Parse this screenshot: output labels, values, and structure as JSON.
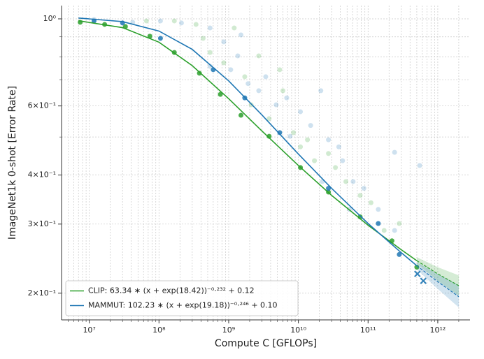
{
  "chart_data": {
    "type": "line",
    "xlabel": "Compute C [GFLOPs]",
    "ylabel": "ImageNet1k 0-shot [Error Rate]",
    "xscale": "log",
    "yscale": "log",
    "grid": true,
    "legend": "lower left",
    "xlim": [
      4000000,
      2900000000000
    ],
    "ylim": [
      0.171,
      1.081
    ],
    "xticks": [
      {
        "value": 10000000,
        "label": "10⁷"
      },
      {
        "value": 100000000,
        "label": "10⁸"
      },
      {
        "value": 1000000000,
        "label": "10⁹"
      },
      {
        "value": 10000000000,
        "label": "10¹⁰"
      },
      {
        "value": 100000000000,
        "label": "10¹¹"
      },
      {
        "value": 1000000000000,
        "label": "10¹²"
      }
    ],
    "xminorticks": [
      5000000.0,
      6000000.0,
      7000000.0,
      8000000.0,
      9000000.0,
      20000000.0,
      30000000.0,
      40000000.0,
      50000000.0,
      60000000.0,
      70000000.0,
      80000000.0,
      90000000.0,
      200000000.0,
      300000000.0,
      400000000.0,
      500000000.0,
      600000000.0,
      700000000.0,
      800000000.0,
      900000000.0,
      2000000000.0,
      3000000000.0,
      4000000000.0,
      5000000000.0,
      6000000000.0,
      7000000000.0,
      8000000000.0,
      9000000000.0,
      20000000000.0,
      30000000000.0,
      40000000000.0,
      50000000000.0,
      60000000000.0,
      70000000000.0,
      80000000000.0,
      90000000000.0,
      200000000000.0,
      300000000000.0,
      400000000000.0,
      500000000000.0,
      600000000000.0,
      700000000000.0,
      800000000000.0,
      900000000000.0,
      2000000000000.0
    ],
    "yticks": [
      {
        "value": 1,
        "label": "10⁰"
      },
      {
        "value": 0.6,
        "label": "6×10⁻¹"
      },
      {
        "value": 0.4,
        "label": "4×10⁻¹"
      },
      {
        "value": 0.3,
        "label": "3×10⁻¹"
      },
      {
        "value": 0.2,
        "label": "2×10⁻¹"
      }
    ],
    "yminorticks": [
      0.5,
      0.7,
      0.8,
      0.9
    ],
    "series": [
      {
        "name": "CLIP: 63.34 ∗ (x + exp(18.42))⁻⁰·²³² + 0.12",
        "color": "#2ca02c",
        "x": [
          7000000.0,
          30000000.0,
          100000000.0,
          300000000.0,
          1000000000.0,
          3000000000.0,
          10000000000.0,
          30000000000.0,
          100000000000.0,
          300000000000.0,
          500000000000.0
        ],
        "values": [
          0.989,
          0.95,
          0.872,
          0.76,
          0.626,
          0.518,
          0.423,
          0.355,
          0.298,
          0.258,
          0.242
        ]
      },
      {
        "name": "MAMMUT: 102.23 ∗ (x + exp(19.18))⁻⁰·²⁴⁶ + 0.10",
        "color": "#1f77b4",
        "x": [
          7000000.0,
          30000000.0,
          100000000.0,
          300000000.0,
          1000000000.0,
          3000000000.0,
          10000000000.0,
          30000000000.0,
          100000000000.0,
          300000000000.0,
          500000000000.0
        ],
        "values": [
          1.005,
          0.984,
          0.931,
          0.836,
          0.695,
          0.569,
          0.4525,
          0.37,
          0.301,
          0.2535,
          0.235
        ]
      }
    ],
    "extrapolation": [
      {
        "color": "#2ca02c",
        "x": [
          500000000000.0,
          1000000000000.0,
          2000000000000.0
        ],
        "values": [
          0.242,
          0.224,
          0.209
        ],
        "lower": [
          0.238,
          0.215,
          0.197
        ],
        "upper": [
          0.247,
          0.233,
          0.222
        ]
      },
      {
        "color": "#1f77b4",
        "x": [
          500000000000.0,
          1000000000000.0,
          2000000000000.0
        ],
        "values": [
          0.235,
          0.214,
          0.196
        ],
        "lower": [
          0.23,
          0.205,
          0.184
        ],
        "upper": [
          0.24,
          0.224,
          0.21
        ]
      }
    ],
    "points": [
      {
        "color": "#1f77b4",
        "opacity": 0.22,
        "marker": "circle",
        "x": [
          11700000.0,
          42000000.0,
          105000000.0,
          210000000.0,
          540000000.0,
          850000000.0,
          1350000000.0,
          1070000000.0,
          1900000000.0,
          2700000000.0,
          3400000000.0,
          4800000000.0,
          6800000000.0,
          10700000000.0,
          15000000000.0,
          21000000000.0,
          27000000000.0,
          38000000000.0,
          43000000000.0,
          61000000000.0,
          87000000000.0,
          140000000000.0,
          240000000000.0,
          550000000000.0,
          22000000000.0,
          54000000000.0,
          1500000000.0,
          540000000.0,
          7600000000.0,
          240000000000.0
        ],
        "values": [
          0.996,
          0.98,
          0.988,
          0.976,
          0.948,
          0.874,
          0.805,
          0.742,
          0.684,
          0.656,
          0.712,
          0.604,
          0.629,
          0.58,
          0.535,
          0.656,
          0.492,
          0.472,
          0.435,
          0.385,
          0.37,
          0.327,
          0.457,
          0.423,
          0.385,
          0.327,
          0.91,
          0.757,
          0.502,
          0.289
        ]
      },
      {
        "color": "#2ca02c",
        "opacity": 0.22,
        "marker": "circle",
        "x": [
          66000000.0,
          166000000.0,
          340000000.0,
          540000000.0,
          850000000.0,
          1200000000.0,
          1700000000.0,
          2100000000.0,
          3800000000.0,
          5400000000.0,
          8500000000.0,
          13500000000.0,
          17000000000.0,
          27000000000.0,
          34000000000.0,
          48000000000.0,
          77000000000.0,
          110000000000.0,
          170000000000.0,
          280000000000.0,
          6000000000.0,
          10700000000.0,
          430000000.0,
          2700000000.0
        ],
        "values": [
          0.988,
          0.988,
          0.968,
          0.821,
          0.773,
          0.948,
          0.712,
          0.604,
          0.557,
          0.742,
          0.513,
          0.492,
          0.435,
          0.454,
          0.418,
          0.385,
          0.355,
          0.34,
          0.289,
          0.301,
          0.656,
          0.472,
          0.892,
          0.805
        ]
      },
      {
        "color": "#2ca02c",
        "opacity": 0.85,
        "marker": "circle",
        "x": [
          7400000.0,
          16600000.0,
          33000000.0,
          74000000.0,
          166000000.0,
          380000000.0,
          760000000.0,
          1500000000.0,
          3800000000.0,
          10700000000.0,
          27000000000.0,
          77000000000.0,
          220000000000.0,
          500000000000.0
        ],
        "values": [
          0.98,
          0.968,
          0.956,
          0.903,
          0.821,
          0.727,
          0.642,
          0.568,
          0.502,
          0.418,
          0.362,
          0.313,
          0.272,
          0.233
        ]
      },
      {
        "color": "#1f77b4",
        "opacity": 0.85,
        "marker": "circle",
        "x": [
          11700000.0,
          30000000.0,
          105000000.0,
          600000000.0,
          1700000000.0,
          5400000000.0,
          27000000000.0,
          140000000000.0,
          280000000000.0
        ],
        "values": [
          0.988,
          0.976,
          0.892,
          0.742,
          0.629,
          0.513,
          0.37,
          0.301,
          0.251
        ]
      },
      {
        "color": "#1f77b4",
        "opacity": 0.9,
        "marker": "x",
        "x": [
          510000000000.0,
          620000000000.0
        ],
        "values": [
          0.224,
          0.215
        ]
      }
    ]
  }
}
